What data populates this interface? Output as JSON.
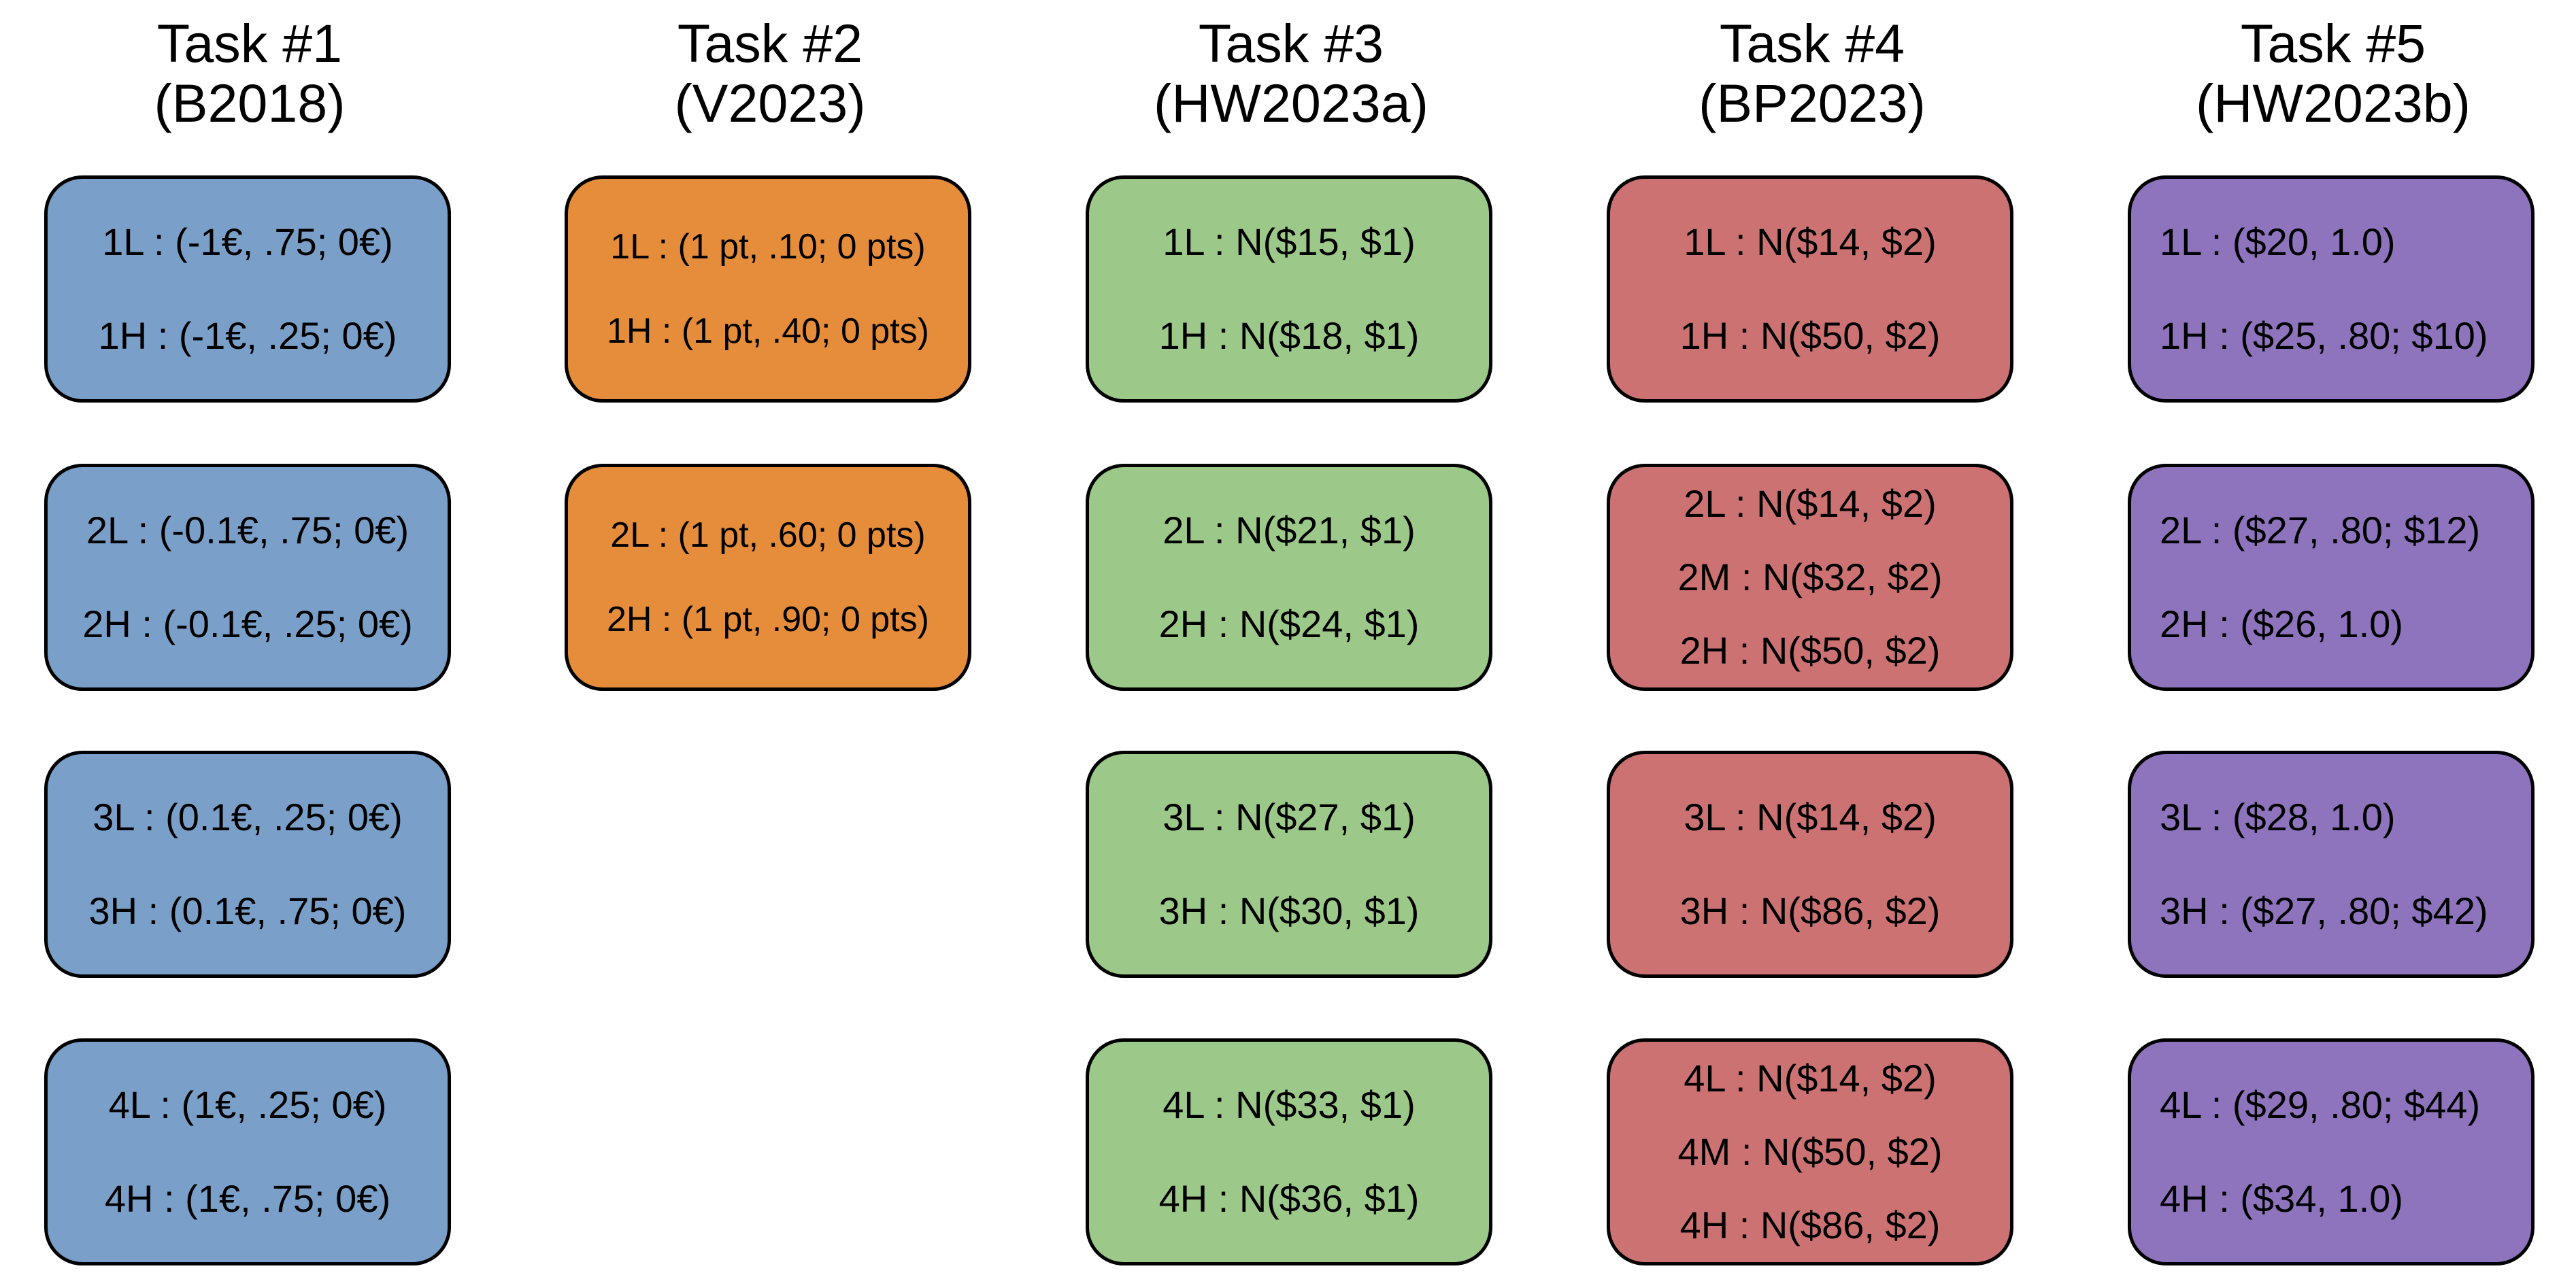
{
  "colors": {
    "task1": "#7a9fc9",
    "task2": "#e58d3a",
    "task3": "#9cc989",
    "task4": "#cc7272",
    "task5": "#8e73bd",
    "border": "#000000"
  },
  "tasks": [
    {
      "title": "Task #1",
      "subtitle": "(B2018)",
      "boxes": [
        [
          "1L : (-1€, .75; 0€)",
          "1H : (-1€, .25; 0€)"
        ],
        [
          "2L : (-0.1€, .75; 0€)",
          "2H : (-0.1€, .25; 0€)"
        ],
        [
          "3L : (0.1€, .25; 0€)",
          "3H : (0.1€, .75; 0€)"
        ],
        [
          "4L : (1€, .25; 0€)",
          "4H : (1€, .75; 0€)"
        ]
      ]
    },
    {
      "title": "Task #2",
      "subtitle": "(V2023)",
      "boxes": [
        [
          "1L : (1 pt, .10; 0 pts)",
          "1H : (1 pt, .40; 0 pts)"
        ],
        [
          "2L : (1 pt, .60; 0 pts)",
          "2H : (1 pt, .90; 0 pts)"
        ]
      ]
    },
    {
      "title": "Task #3",
      "subtitle": "(HW2023a)",
      "boxes": [
        [
          "1L : N($15, $1)",
          "1H : N($18, $1)"
        ],
        [
          "2L : N($21, $1)",
          "2H : N($24, $1)"
        ],
        [
          "3L : N($27, $1)",
          "3H : N($30, $1)"
        ],
        [
          "4L : N($33, $1)",
          "4H : N($36, $1)"
        ]
      ]
    },
    {
      "title": "Task #4",
      "subtitle": "(BP2023)",
      "boxes": [
        [
          "1L : N($14, $2)",
          "1H : N($50, $2)"
        ],
        [
          "2L : N($14, $2)",
          "2M : N($32, $2)",
          "2H : N($50, $2)"
        ],
        [
          "3L : N($14, $2)",
          "3H : N($86, $2)"
        ],
        [
          "4L : N($14, $2)",
          "4M : N($50, $2)",
          "4H : N($86, $2)"
        ]
      ]
    },
    {
      "title": "Task #5",
      "subtitle": "(HW2023b)",
      "boxes": [
        [
          "1L : ($20, 1.0)",
          "1H : ($25, .80; $10)"
        ],
        [
          "2L : ($27, .80; $12)",
          "2H : ($26, 1.0)"
        ],
        [
          "3L : ($28, 1.0)",
          "3H : ($27, .80; $42)"
        ],
        [
          "4L : ($29, .80; $44)",
          "4H : ($34, 1.0)"
        ]
      ]
    }
  ]
}
